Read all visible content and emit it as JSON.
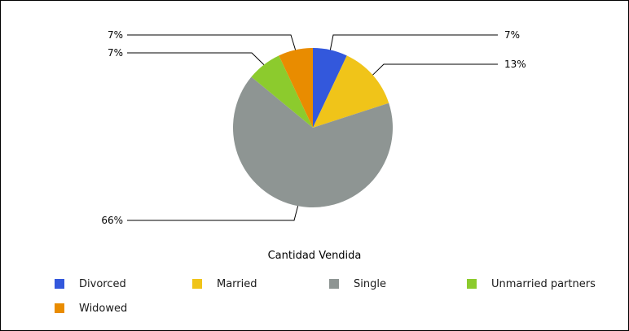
{
  "chart_data": {
    "type": "pie",
    "title": "Cantidad Vendida",
    "categories": [
      "Divorced",
      "Married",
      "Single",
      "Unmarried partners",
      "Widowed"
    ],
    "values": [
      7,
      13,
      66,
      7,
      7
    ],
    "data_labels": [
      "7%",
      "13%",
      "66%",
      "7%",
      "7%"
    ],
    "colors": [
      "#3358dc",
      "#f0c419",
      "#8e9593",
      "#8ccb2d",
      "#e98c00"
    ],
    "legend_position": "bottom",
    "start_angle": "12 o'clock, clockwise"
  }
}
